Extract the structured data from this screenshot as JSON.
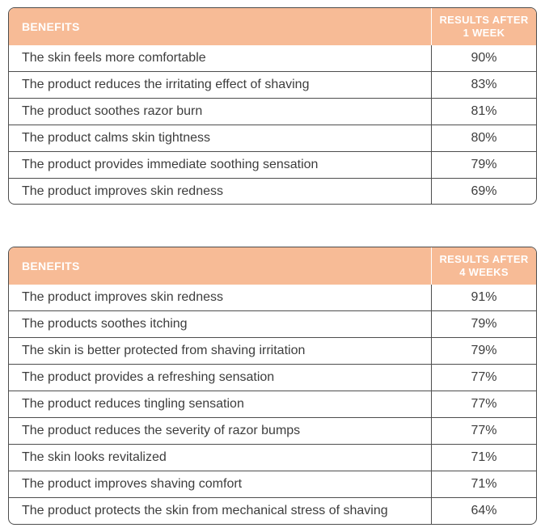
{
  "colors": {
    "header_bg": "#f7bb96",
    "header_text": "#ffffff",
    "body_text": "#3d3d3d",
    "border": "#4d4d4d"
  },
  "tables": [
    {
      "header": {
        "benefits": "BENEFITS",
        "results": "RESULTS AFTER 1 WEEK"
      },
      "rows": [
        {
          "benefit": "The skin feels more comfortable",
          "result": "90%"
        },
        {
          "benefit": "The product reduces the irritating effect of shaving",
          "result": "83%"
        },
        {
          "benefit": "The product soothes razor burn",
          "result": "81%"
        },
        {
          "benefit": "The product calms skin tightness",
          "result": "80%"
        },
        {
          "benefit": "The product provides immediate soothing sensation",
          "result": "79%"
        },
        {
          "benefit": "The product improves skin redness",
          "result": "69%"
        }
      ]
    },
    {
      "header": {
        "benefits": "BENEFITS",
        "results": "RESULTS AFTER 4 WEEKS"
      },
      "rows": [
        {
          "benefit": "The product improves skin redness",
          "result": "91%"
        },
        {
          "benefit": "The products soothes itching",
          "result": "79%"
        },
        {
          "benefit": "The skin is better protected from shaving irritation",
          "result": "79%"
        },
        {
          "benefit": "The product provides a refreshing sensation",
          "result": "77%"
        },
        {
          "benefit": "The product reduces tingling sensation",
          "result": "77%"
        },
        {
          "benefit": "The product reduces the severity of razor bumps",
          "result": "77%"
        },
        {
          "benefit": "The skin looks revitalized",
          "result": "71%"
        },
        {
          "benefit": "The product improves shaving comfort",
          "result": "71%"
        },
        {
          "benefit": "The product protects the skin from mechanical stress of shaving",
          "result": "64%"
        }
      ]
    }
  ]
}
